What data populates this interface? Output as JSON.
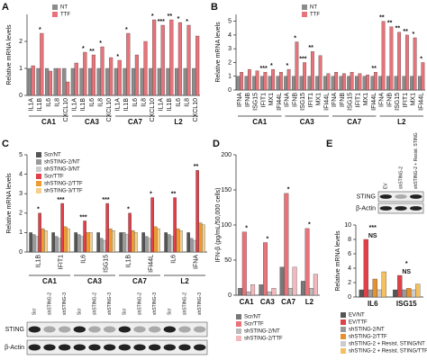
{
  "chart_data": [
    {
      "type": "bar",
      "panel": "A",
      "y_label": "Relative mRNA levels",
      "categories": [
        "IL1A",
        "IL1B",
        "IL6",
        "IL8",
        "CXCL10",
        "IL1A",
        "IL1B",
        "IL6",
        "IL8",
        "CXCL10",
        "IL1A",
        "IL1B",
        "IL6",
        "IL8",
        "CXCL10",
        "IL1A",
        "IL1B",
        "IL6",
        "IL8",
        "CXCL10"
      ],
      "group_labels": [
        "CA1",
        null,
        null,
        null,
        null,
        "CA3",
        null,
        null,
        null,
        null,
        "CA7",
        null,
        null,
        null,
        null,
        "L2",
        null,
        null,
        null,
        null
      ],
      "series": [
        {
          "name": "NT",
          "color": "#8c8c8c",
          "values": [
            1,
            1,
            1,
            1,
            1,
            1,
            1,
            1,
            1,
            1,
            1,
            1,
            1,
            1,
            1,
            1,
            1,
            1,
            1,
            1
          ]
        },
        {
          "name": "TTF",
          "color": "#e8737a",
          "values": [
            1.1,
            2.3,
            0.9,
            1.0,
            0.5,
            1.2,
            1.6,
            1.5,
            1.8,
            1.4,
            1.3,
            2.3,
            1.5,
            2.0,
            2.8,
            2.6,
            2.8,
            2.7,
            2.6,
            2.2
          ]
        }
      ],
      "significance": [
        null,
        "*",
        null,
        null,
        null,
        null,
        "*",
        "**",
        "*",
        null,
        "*",
        "*",
        null,
        null,
        "*",
        "***",
        "**",
        "*",
        "*",
        null
      ],
      "ylim": [
        0,
        3
      ],
      "yticks": [
        0,
        1,
        2
      ]
    },
    {
      "type": "bar",
      "panel": "B",
      "y_label": "Relative mRNA levels",
      "categories": [
        "IFNA",
        "IFNB",
        "ISG15",
        "IFIT1",
        "MX1",
        "IFI44L",
        "IFNA",
        "IFNB",
        "ISG15",
        "IFIT1",
        "MX1",
        "IFI44L",
        "IFNA",
        "IFNB",
        "ISG15",
        "IFIT1",
        "MX1",
        "IFI44L",
        "IFNA",
        "IFNB",
        "ISG15",
        "IFIT1",
        "MX1",
        "IFI44L"
      ],
      "group_labels": [
        "CA1",
        null,
        null,
        null,
        null,
        null,
        "CA3",
        null,
        null,
        null,
        null,
        null,
        "CA7",
        null,
        null,
        null,
        null,
        null,
        "L2",
        null,
        null,
        null,
        null,
        null
      ],
      "series": [
        {
          "name": "NT",
          "color": "#8c8c8c",
          "values": [
            1,
            1,
            1,
            1,
            1,
            1,
            1,
            1,
            1,
            1,
            1,
            1,
            1,
            1,
            1,
            1,
            1,
            1,
            1,
            1,
            1,
            1,
            1,
            1
          ]
        },
        {
          "name": "TTF",
          "color": "#e8737a",
          "values": [
            1.3,
            1.5,
            1.4,
            1.3,
            1.5,
            1.3,
            1.5,
            3.5,
            2.0,
            2.8,
            2.5,
            1.2,
            1.3,
            1.2,
            1.3,
            1.2,
            1.1,
            1.3,
            5.0,
            4.6,
            4.2,
            4.0,
            3.8,
            2.0
          ]
        }
      ],
      "significance": [
        null,
        null,
        null,
        "***",
        "*",
        null,
        "*",
        "*",
        "***",
        "**",
        null,
        null,
        null,
        null,
        null,
        null,
        null,
        "**",
        "**",
        "**",
        "**",
        "**",
        "*",
        "*"
      ],
      "ylim": [
        0,
        5.5
      ],
      "yticks": [
        0,
        1,
        2,
        3,
        4,
        5
      ]
    },
    {
      "type": "bar",
      "panel": "C",
      "y_label": "Relative mRNA levels",
      "categories": [
        "IL1B",
        "IFIT1",
        "IL6",
        "ISG15",
        "IL1B",
        "IFI44L",
        "IL6",
        "IFNA"
      ],
      "group_labels": [
        "CA1",
        null,
        "CA3",
        null,
        "CA7",
        null,
        "L2",
        null
      ],
      "series": [
        {
          "name": "Scr/NT",
          "color": "#555555",
          "values": [
            1,
            1,
            1,
            1,
            1,
            1,
            1,
            1
          ]
        },
        {
          "name": "shSTING-2/NT",
          "color": "#999999",
          "values": [
            0.9,
            0.8,
            0.9,
            0.7,
            1.0,
            0.8,
            0.9,
            0.7
          ]
        },
        {
          "name": "shSTING-3/NT",
          "color": "#cccccc",
          "values": [
            0.8,
            0.7,
            0.8,
            0.6,
            0.9,
            0.7,
            0.8,
            0.6
          ]
        },
        {
          "name": "Scr/TTF",
          "color": "#e0404a",
          "values": [
            2.0,
            2.5,
            1.6,
            2.5,
            2.0,
            2.8,
            2.8,
            4.2
          ]
        },
        {
          "name": "shSTING-2/TTF",
          "color": "#ee9a30",
          "values": [
            1.2,
            1.3,
            1.0,
            1.2,
            1.1,
            1.3,
            1.2,
            1.5
          ]
        },
        {
          "name": "shSTING-3/TTF",
          "color": "#f5d08a",
          "values": [
            1.1,
            1.2,
            1.0,
            1.1,
            1.0,
            1.2,
            1.1,
            1.4
          ]
        }
      ],
      "significance": [
        "*",
        "***",
        "***",
        "***",
        "*",
        "*",
        "**",
        "**"
      ],
      "ylim": [
        0,
        5
      ],
      "yticks": [
        0,
        1,
        2,
        3,
        4,
        5
      ],
      "blot": {
        "rows": [
          "STING",
          "β-Actin"
        ],
        "lanes": [
          "Scr",
          "shSTING-2",
          "shSTING-3",
          "Scr",
          "shSTING-2",
          "shSTING-3",
          "Scr",
          "shSTING-2",
          "shSTING-3",
          "Scr",
          "shSTING-2",
          "shSTING-3"
        ]
      }
    },
    {
      "type": "bar",
      "panel": "D",
      "y_label": "IFN-β (pg/mL/50,000 cells)",
      "categories": [
        "CA1",
        "CA3",
        "CA7",
        "L2"
      ],
      "series": [
        {
          "name": "Scr/NT",
          "color": "#777777",
          "values": [
            10,
            15,
            40,
            20
          ]
        },
        {
          "name": "Scr/TTF",
          "color": "#e8737a",
          "values": [
            90,
            75,
            145,
            95
          ]
        },
        {
          "name": "shSTING-2/NT",
          "color": "#bbbbbb",
          "values": [
            5,
            5,
            10,
            10
          ]
        },
        {
          "name": "shSTING-2/TTF",
          "color": "#f4b8bc",
          "values": [
            15,
            10,
            40,
            30
          ]
        }
      ],
      "significance": [
        "*",
        "*",
        "*",
        "*"
      ],
      "ylim": [
        0,
        200
      ],
      "yticks": [
        0,
        50,
        100,
        150,
        200
      ]
    },
    {
      "type": "bar",
      "panel": "E",
      "y_label": "Relative mRNA levels",
      "categories": [
        "IL6",
        "ISG15"
      ],
      "series": [
        {
          "name": "EV/NT",
          "color": "#555555",
          "values": [
            1,
            1
          ]
        },
        {
          "name": "EV/TTF",
          "color": "#e04048",
          "values": [
            8,
            3
          ]
        },
        {
          "name": "shSTING-2/NT",
          "color": "#999999",
          "values": [
            1,
            1
          ]
        },
        {
          "name": "shSTING-2/TTF",
          "color": "#e8902a",
          "values": [
            2.5,
            1.2
          ]
        },
        {
          "name": "shSTING-2 + Resist. STING/NT",
          "color": "#cccccc",
          "values": [
            1,
            1
          ]
        },
        {
          "name": "shSTING-2 + Resist. STING/TTF",
          "color": "#f5c060",
          "values": [
            3.5,
            1.8
          ]
        }
      ],
      "significance": [
        [
          "NS",
          "***"
        ],
        [
          "NS",
          "*"
        ]
      ],
      "ylim": [
        0,
        10
      ],
      "yticks": [
        0,
        2,
        4,
        6,
        8,
        10
      ],
      "blot": {
        "rows": [
          "STING",
          "β-Actin"
        ],
        "lanes": [
          "EV",
          "shSTING-2",
          "shSTING-2 + Resist. STING"
        ]
      }
    }
  ]
}
